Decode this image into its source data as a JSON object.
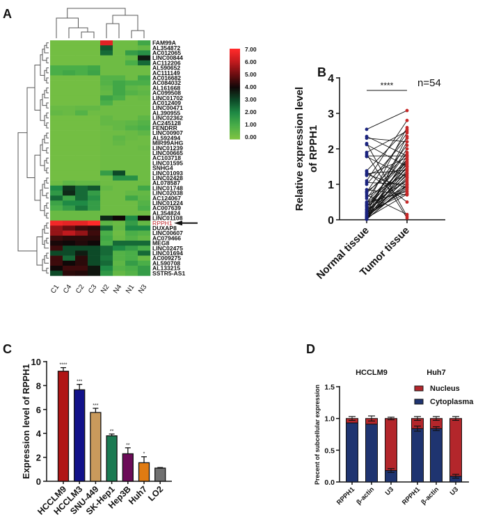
{
  "panels": {
    "a": "A",
    "b": "B",
    "c": "C",
    "d": "D"
  },
  "chart_data": [
    {
      "type": "heatmap",
      "panel": "A",
      "columns": [
        "C1",
        "C4",
        "C2",
        "C3",
        "N2",
        "N4",
        "N1",
        "N3"
      ],
      "rows": [
        "FAM99A",
        "AL354872",
        "AC012065",
        "LINC00844",
        "AC112206",
        "AL590652",
        "AC111149",
        "AC016682",
        "AC084032",
        "AL161668",
        "AC099508",
        "LINC01702",
        "AC012409",
        "LINC00471",
        "AL390955",
        "LINC02362",
        "AC245128",
        "FENDRR",
        "LINC00907",
        "AL592494",
        "MIR99AHG",
        "LINC01239",
        "LINC00665",
        "AC103718",
        "LINC01595",
        "SNHG4",
        "LINC01093",
        "LINC02428",
        "AL078587",
        "LINC01748",
        "LINC02038",
        "AC124067",
        "LINC01224",
        "AC007639",
        "AL354824",
        "LINC01108",
        "RPPH1",
        "DUXAP8",
        "LINC00607",
        "AC079466",
        "MEG8",
        "LINC02475",
        "LINC01694",
        "AC009275",
        "AL590708",
        "AL133215",
        "SSTR5-AS1"
      ],
      "highlight_row": "RPPH1",
      "highlight_color": "#c0282d",
      "values": [
        [
          0.2,
          0.2,
          0.2,
          0.2,
          6.5,
          0.3,
          0.3,
          1.2
        ],
        [
          0.2,
          0.2,
          0.2,
          0.2,
          2.8,
          0.3,
          0.3,
          0.5
        ],
        [
          0.2,
          0.2,
          0.2,
          0.2,
          2.5,
          0.3,
          1.5,
          1.8
        ],
        [
          0.2,
          0.2,
          0.2,
          0.2,
          0.3,
          0.3,
          0.5,
          3.7
        ],
        [
          0.2,
          0.2,
          0.2,
          0.2,
          0.3,
          0.3,
          1.0,
          2.5
        ],
        [
          1.0,
          1.0,
          1.0,
          1.2,
          0.3,
          0.3,
          0.3,
          0.3
        ],
        [
          1.0,
          1.2,
          1.0,
          1.3,
          0.3,
          0.3,
          0.3,
          0.3
        ],
        [
          0.2,
          0.2,
          0.2,
          0.2,
          0.8,
          0.8,
          0.3,
          1.2
        ],
        [
          0.2,
          0.2,
          0.2,
          0.2,
          0.8,
          1.2,
          1.0,
          1.0
        ],
        [
          0.2,
          0.2,
          0.2,
          0.2,
          0.6,
          1.2,
          0.6,
          0.5
        ],
        [
          0.2,
          0.2,
          0.2,
          0.2,
          0.5,
          1.2,
          0.8,
          0.6
        ],
        [
          0.2,
          0.2,
          0.2,
          0.2,
          1.3,
          1.0,
          0.3,
          0.4
        ],
        [
          0.2,
          0.2,
          0.2,
          0.2,
          1.0,
          0.3,
          0.3,
          0.3
        ],
        [
          0.4,
          0.4,
          0.5,
          0.5,
          0.3,
          0.3,
          0.3,
          0.3
        ],
        [
          0.5,
          0.4,
          0.8,
          0.3,
          0.3,
          0.3,
          0.3,
          0.3
        ],
        [
          0.2,
          0.2,
          0.2,
          0.2,
          0.5,
          0.3,
          0.3,
          0.6
        ],
        [
          0.2,
          0.2,
          0.2,
          0.2,
          0.5,
          0.5,
          0.6,
          0.8
        ],
        [
          0.2,
          0.2,
          0.2,
          0.2,
          0.3,
          0.5,
          0.8,
          1.0
        ],
        [
          0.2,
          0.2,
          0.2,
          0.2,
          0.3,
          0.3,
          0.4,
          0.6
        ],
        [
          0.2,
          0.2,
          0.2,
          0.2,
          0.3,
          0.6,
          0.4,
          0.3
        ],
        [
          0.2,
          0.2,
          0.2,
          0.2,
          0.3,
          0.5,
          0.3,
          0.3
        ],
        [
          0.2,
          0.2,
          0.2,
          0.2,
          0.3,
          0.3,
          0.3,
          0.4
        ],
        [
          0.2,
          0.2,
          0.2,
          0.2,
          0.3,
          0.3,
          0.3,
          0.3
        ],
        [
          0.2,
          0.2,
          0.2,
          0.2,
          0.3,
          0.3,
          0.3,
          0.3
        ],
        [
          0.2,
          0.2,
          0.2,
          0.2,
          0.3,
          0.3,
          0.3,
          0.3
        ],
        [
          0.2,
          0.2,
          0.2,
          0.2,
          0.3,
          0.3,
          0.3,
          0.3
        ],
        [
          0.2,
          0.2,
          0.2,
          0.2,
          1.5,
          3.0,
          0.3,
          0.3
        ],
        [
          0.2,
          0.2,
          0.2,
          0.2,
          0.3,
          1.8,
          1.8,
          0.3
        ],
        [
          0.3,
          0.6,
          0.5,
          0.5,
          0.3,
          0.3,
          0.3,
          0.3
        ],
        [
          2.0,
          3.3,
          2.5,
          2.8,
          0.5,
          0.3,
          0.3,
          1.2
        ],
        [
          1.6,
          3.5,
          2.5,
          1.5,
          0.3,
          0.3,
          0.5,
          0.5
        ],
        [
          2.5,
          1.3,
          2.5,
          1.8,
          0.3,
          0.3,
          1.2,
          0.6
        ],
        [
          1.3,
          2.0,
          2.0,
          1.5,
          0.3,
          0.3,
          0.3,
          0.8
        ],
        [
          1.0,
          1.5,
          2.3,
          1.5,
          0.3,
          0.3,
          0.3,
          1.0
        ],
        [
          0.4,
          0.4,
          0.4,
          0.4,
          0.3,
          0.3,
          0.3,
          0.3
        ],
        [
          0.4,
          0.4,
          0.4,
          0.4,
          3.5,
          4.0,
          2.0,
          4.0
        ],
        [
          6.8,
          6.6,
          6.6,
          7.0,
          0.6,
          0.4,
          1.5,
          0.5
        ],
        [
          5.5,
          5.0,
          4.5,
          4.3,
          2.5,
          0.5,
          2.0,
          2.0
        ],
        [
          5.5,
          6.0,
          5.5,
          4.5,
          1.0,
          0.3,
          1.0,
          0.8
        ],
        [
          4.5,
          4.3,
          4.3,
          4.3,
          1.2,
          0.4,
          0.8,
          0.5
        ],
        [
          4.1,
          4.0,
          4.2,
          4.0,
          1.0,
          2.5,
          2.5,
          2.5
        ],
        [
          4.5,
          3.0,
          3.0,
          3.0,
          2.5,
          2.0,
          1.5,
          1.0
        ],
        [
          3.0,
          3.0,
          3.7,
          3.0,
          2.5,
          0.8,
          1.0,
          2.5
        ],
        [
          4.5,
          2.5,
          4.3,
          3.0,
          2.3,
          0.8,
          1.0,
          0.4
        ],
        [
          4.5,
          4.0,
          4.3,
          3.0,
          2.5,
          0.6,
          1.5,
          1.0
        ],
        [
          4.0,
          4.5,
          4.5,
          3.8,
          2.0,
          0.8,
          1.0,
          1.5
        ],
        [
          3.0,
          4.3,
          4.2,
          3.8,
          1.6,
          0.5,
          0.8,
          1.5
        ]
      ],
      "colorbar": {
        "range": [
          0,
          7
        ],
        "ticks": [
          "7.00",
          "6.00",
          "5.00",
          "4.00",
          "3.00",
          "2.00",
          "1.00",
          "0.00"
        ],
        "stops": [
          [
            0,
            "#7dc242"
          ],
          [
            1,
            "#4aae48"
          ],
          [
            2,
            "#1f8a45"
          ],
          [
            3,
            "#0d4a28"
          ],
          [
            4,
            "#100808"
          ],
          [
            5,
            "#6a0d10"
          ],
          [
            6,
            "#c01a1e"
          ],
          [
            7,
            "#ff2a2a"
          ]
        ]
      }
    },
    {
      "type": "scatter",
      "subtype": "paired",
      "panel": "B",
      "ylabel": [
        "Relative expression level",
        "of RPPH1"
      ],
      "categories": [
        "Normal tissue",
        "Tumor tissue"
      ],
      "ylim": [
        0,
        4
      ],
      "yticks": [
        "0",
        "1",
        "2",
        "3",
        "4"
      ],
      "significance": "****",
      "annotation": "n=54",
      "colors": {
        "normal": "#1a237e",
        "tumor": "#c62828",
        "line": "#111111"
      },
      "normal": [
        2.55,
        2.35,
        2.3,
        2.15,
        2.12,
        1.9,
        1.85,
        1.8,
        1.78,
        1.38,
        1.35,
        1.3,
        1.28,
        1.25,
        1.1,
        1.05,
        1.0,
        0.85,
        0.8,
        0.78,
        0.75,
        0.7,
        0.65,
        0.6,
        0.5,
        0.48,
        0.45,
        0.42,
        0.4,
        0.38,
        0.35,
        0.3,
        0.3,
        0.28,
        0.25,
        0.22,
        0.2,
        0.2,
        0.18,
        0.15,
        0.15,
        0.12,
        0.1,
        0.1,
        0.08,
        0.08,
        0.06,
        0.05,
        0.05,
        0.04,
        0.03,
        0.02,
        0.02,
        0.01
      ],
      "tumor": [
        3.08,
        1.8,
        2.2,
        0.1,
        1.5,
        2.5,
        0.05,
        1.8,
        1.2,
        2.55,
        0.5,
        1.4,
        0.9,
        1.75,
        2.8,
        1.0,
        2.3,
        0.7,
        1.6,
        2.45,
        1.85,
        0.15,
        1.3,
        2.1,
        1.7,
        0.8,
        1.55,
        2.6,
        1.45,
        1.1,
        1.9,
        0.95,
        1.65,
        2.0,
        1.25,
        0.75,
        1.5,
        2.2,
        1.35,
        0.85,
        1.7,
        1.15,
        0.9,
        1.6,
        1.05,
        2.35,
        1.4,
        0.72,
        1.8,
        1.2,
        1.5,
        0.95,
        1.3,
        1.0
      ]
    },
    {
      "type": "bar",
      "panel": "C",
      "ylabel": "Expression level of RPPH1",
      "categories": [
        "HCCLM9",
        "HCCLM3",
        "SNU-449",
        "SK-Hep1",
        "Hep3B",
        "Huh7",
        "LO2"
      ],
      "values": [
        9.2,
        7.65,
        5.75,
        3.8,
        2.3,
        1.55,
        1.1
      ],
      "errors": [
        0.3,
        0.45,
        0.35,
        0.15,
        0.5,
        0.5,
        0.05
      ],
      "significance": [
        "****",
        "***",
        "***",
        "**",
        "**",
        "*",
        ""
      ],
      "colors": [
        "#b01515",
        "#12128a",
        "#c99a5c",
        "#1b7a52",
        "#6b0b58",
        "#e07b12",
        "#707070"
      ],
      "ylim": [
        0,
        10
      ],
      "yticks": [
        "0",
        "2",
        "4",
        "6",
        "8",
        "10"
      ]
    },
    {
      "type": "bar",
      "subtype": "stacked",
      "panel": "D",
      "ylabel": "Precent of subcellular expression",
      "groups": [
        "HCCLM9",
        "Huh7"
      ],
      "categories": [
        "RPPH1",
        "β-actin",
        "U3",
        "RPPH1",
        "β-actin",
        "U3"
      ],
      "series": [
        {
          "name": "Cytoplasma",
          "color": "#1f3470",
          "values": [
            0.93,
            0.91,
            0.18,
            0.84,
            0.84,
            0.09
          ],
          "errors": [
            0.0,
            0.0,
            0.03,
            0.04,
            0.03,
            0.03
          ]
        },
        {
          "name": "Nucleus",
          "color": "#b3262b",
          "values": [
            0.07,
            0.09,
            0.82,
            0.16,
            0.16,
            0.91
          ],
          "errors": [
            0.03,
            0.04,
            0.02,
            0.03,
            0.03,
            0.03
          ]
        }
      ],
      "legend": "top-right",
      "ylim": [
        0,
        1.5
      ],
      "yticks": [
        "0.0",
        "0.5",
        "1.0",
        "1.5"
      ]
    }
  ]
}
